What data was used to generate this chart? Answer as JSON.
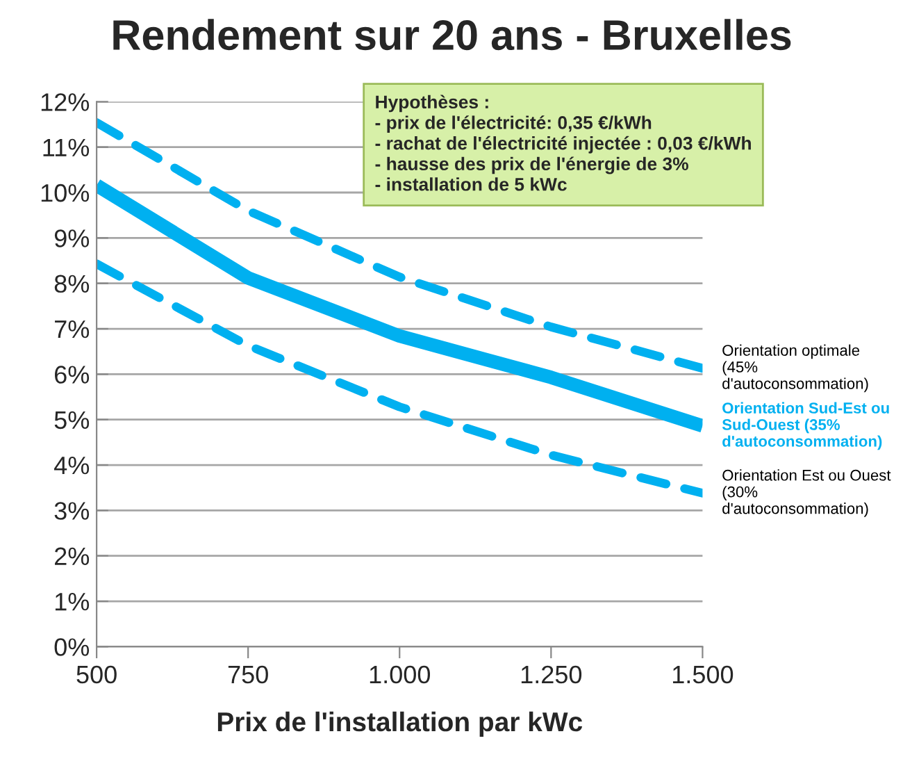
{
  "chart_data": {
    "type": "line",
    "title": "Rendement sur 20 ans - Bruxelles",
    "xlabel": "Prix de l'installation par kWc",
    "x": [
      500,
      750,
      1000,
      1250,
      1500
    ],
    "series": [
      {
        "name": "Orientation optimale (45% d'autoconsommation)",
        "color": "#00b0f0",
        "line_style": "dashed",
        "values": [
          11.54,
          9.6,
          8.14,
          7.04,
          6.13
        ]
      },
      {
        "name": "Orientation Sud-Est ou Sud-Ouest (35% d'autoconsommation)",
        "color": "#00b0f0",
        "line_style": "solid",
        "values": [
          10.16,
          8.12,
          6.84,
          5.93,
          4.86
        ]
      },
      {
        "name": "Orientation Est ou Ouest (30% d'autoconsommation)",
        "color": "#00b0f0",
        "line_style": "dashed",
        "values": [
          8.43,
          6.63,
          5.28,
          4.22,
          3.38
        ]
      }
    ],
    "xlim": [
      500,
      1500
    ],
    "xticks": [
      500,
      750,
      {
        "value": 1000,
        "label": "1.000"
      },
      {
        "value": 1250,
        "label": "1.250"
      },
      {
        "value": 1500,
        "label": "1.500"
      }
    ],
    "ylim": [
      0,
      12
    ],
    "yticks": [
      {
        "value": 0,
        "label": "0%"
      },
      {
        "value": 1,
        "label": "1%"
      },
      {
        "value": 2,
        "label": "2%"
      },
      {
        "value": 3,
        "label": "3%"
      },
      {
        "value": 4,
        "label": "4%"
      },
      {
        "value": 5,
        "label": "5%"
      },
      {
        "value": 6,
        "label": "6%"
      },
      {
        "value": 7,
        "label": "7%"
      },
      {
        "value": 8,
        "label": "8%"
      },
      {
        "value": 9,
        "label": "9%"
      },
      {
        "value": 10,
        "label": "10%"
      },
      {
        "value": 11,
        "label": "11%"
      },
      {
        "value": 12,
        "label": "12%"
      }
    ],
    "grid": "y",
    "marker": "none",
    "annotations": [
      "Hypothèses :\n- prix de l'électricité: 0,35 €/kWh\n- rachat de l'électricité injectée : 0,03 €/kWh\n- hausse des prix de l'énergie de 3%\n- installation de 5 kWc"
    ]
  }
}
